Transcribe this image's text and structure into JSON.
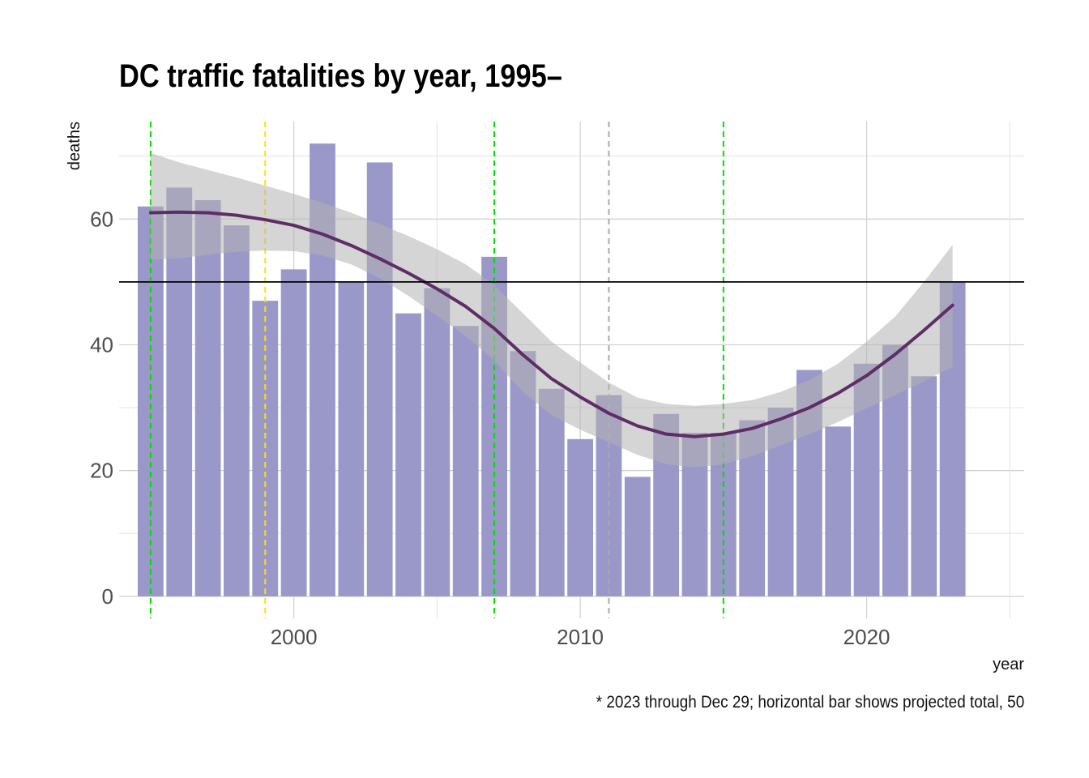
{
  "chart_data": {
    "type": "bar",
    "title": "DC traffic fatalities by year, 1995–",
    "caption": "* 2023 through Dec 29; horizontal bar shows projected total, 50",
    "xlabel": "year",
    "ylabel": "deaths",
    "xlim": [
      1993.9,
      2025.5
    ],
    "ylim": [
      -3.5,
      75.5
    ],
    "x_ticks": [
      2000,
      2010,
      2020
    ],
    "y_ticks": [
      0,
      20,
      40,
      60
    ],
    "grid": true,
    "bar_color": "#9a98c9",
    "smooth_color": "#5e2d66",
    "band_color": "#b3b3b3",
    "x": [
      1995,
      1996,
      1997,
      1998,
      1999,
      2000,
      2001,
      2002,
      2003,
      2004,
      2005,
      2006,
      2007,
      2008,
      2009,
      2010,
      2011,
      2012,
      2013,
      2014,
      2015,
      2016,
      2017,
      2018,
      2019,
      2020,
      2021,
      2022,
      2023
    ],
    "values": [
      62,
      65,
      63,
      59,
      47,
      52,
      72,
      50,
      69,
      45,
      49,
      43,
      54,
      39,
      33,
      25,
      32,
      19,
      29,
      26,
      26,
      28,
      30,
      36,
      27,
      37,
      40,
      35,
      50
    ],
    "horizontal_line": {
      "y": 50,
      "color": "#000000"
    },
    "vertical_lines": [
      {
        "x": 1995.0,
        "color": "#00dd00"
      },
      {
        "x": 1999.0,
        "color": "#ffe000"
      },
      {
        "x": 2007.0,
        "color": "#00dd00"
      },
      {
        "x": 2011.0,
        "color": "#aaaaaa"
      },
      {
        "x": 2015.0,
        "color": "#00dd00"
      }
    ],
    "smooth": {
      "x": [
        1995,
        1996,
        1997,
        1998,
        1999,
        2000,
        2001,
        2002,
        2003,
        2004,
        2005,
        2006,
        2007,
        2008,
        2009,
        2010,
        2011,
        2012,
        2013,
        2014,
        2015,
        2016,
        2017,
        2018,
        2019,
        2020,
        2021,
        2022,
        2023
      ],
      "y": [
        61.0,
        61.1,
        61.0,
        60.6,
        59.9,
        59.0,
        57.6,
        55.8,
        53.7,
        51.4,
        48.9,
        46.1,
        42.6,
        38.4,
        34.6,
        31.7,
        29.1,
        27.1,
        25.8,
        25.4,
        25.8,
        26.7,
        28.2,
        30.0,
        32.3,
        35.1,
        38.5,
        42.3,
        46.3
      ],
      "lower": [
        53.5,
        53.8,
        54.3,
        54.8,
        55.0,
        54.9,
        54.2,
        52.8,
        50.6,
        47.8,
        44.6,
        41.4,
        37.5,
        32.5,
        28.8,
        26.5,
        24.5,
        22.5,
        21.0,
        20.5,
        21.0,
        22.3,
        24.0,
        25.8,
        27.7,
        29.9,
        32.0,
        34.2,
        36.5
      ],
      "upper": [
        70.5,
        69.0,
        67.8,
        66.6,
        65.3,
        64.0,
        62.6,
        61.0,
        59.2,
        57.3,
        55.2,
        52.8,
        49.5,
        45.0,
        40.5,
        37.2,
        34.0,
        31.6,
        30.6,
        30.3,
        30.6,
        31.2,
        32.5,
        34.4,
        37.0,
        40.5,
        44.5,
        50.0,
        55.9
      ]
    }
  }
}
